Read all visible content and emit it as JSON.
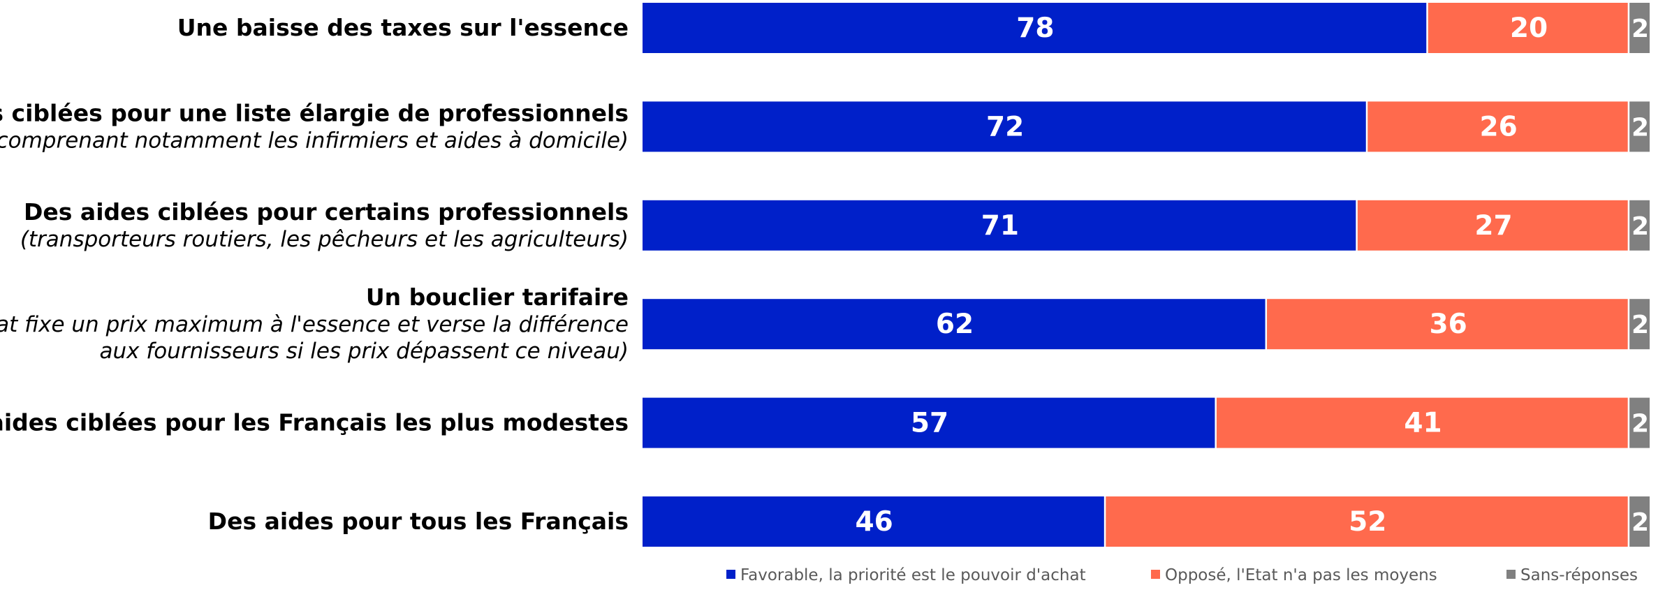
{
  "chart_data": {
    "type": "bar",
    "orientation": "horizontal",
    "stacked": true,
    "categories": [
      {
        "label": "Une baisse des taxes sur l'essence",
        "sub": []
      },
      {
        "label": "Des aides ciblées pour une liste élargie de professionnels",
        "sub": [
          "(comprenant notamment les infirmiers et aides à domicile)"
        ]
      },
      {
        "label": "Des aides ciblées pour certains professionnels",
        "sub": [
          "(transporteurs routiers, les pêcheurs et les agriculteurs)"
        ]
      },
      {
        "label": "Un bouclier tarifaire",
        "sub": [
          "(l'État fixe un prix maximum à l'essence et verse la différence",
          "aux fournisseurs si les prix dépassent ce niveau)"
        ]
      },
      {
        "label": "Des aides ciblées pour les Français les plus modestes",
        "sub": []
      },
      {
        "label": "Des aides pour tous les Français",
        "sub": []
      }
    ],
    "series": [
      {
        "name": "Favorable, la priorité est le pouvoir d'achat",
        "color": "#0020C9",
        "values": [
          78,
          72,
          71,
          62,
          57,
          46
        ]
      },
      {
        "name": "Opposé, l'Etat n'a pas les moyens",
        "color": "#FF6A4D",
        "values": [
          20,
          26,
          27,
          36,
          41,
          52
        ]
      },
      {
        "name": "Sans-réponses",
        "color": "#808080",
        "values": [
          2,
          2,
          2,
          2,
          2,
          2
        ]
      }
    ],
    "xlim": [
      0,
      100
    ],
    "legend_position": "bottom",
    "grid": false
  }
}
